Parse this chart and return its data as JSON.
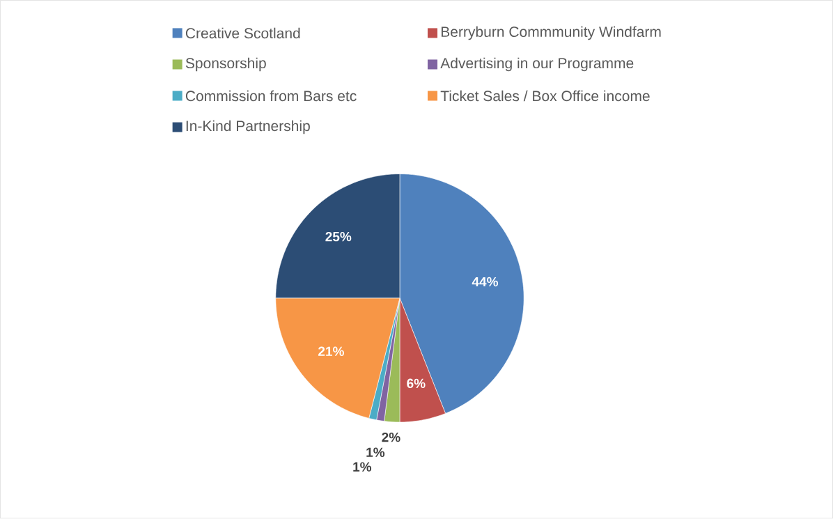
{
  "chart_data": {
    "type": "pie",
    "categories": [
      "Creative Scotland",
      "Berryburn Commmunity Windfarm",
      "Sponsorship",
      "Advertising in our Programme",
      "Commission from Bars etc",
      "Ticket Sales / Box Office income",
      "In-Kind Partnership"
    ],
    "values": [
      44,
      6,
      2,
      1,
      1,
      21,
      25
    ],
    "colors": [
      "#4f81bd",
      "#c0504d",
      "#9bbb59",
      "#8064a2",
      "#4bacc6",
      "#f79646",
      "#2c4d75"
    ],
    "value_labels": [
      "44%",
      "6%",
      "2%",
      "1%",
      "1%",
      "21%",
      "25%"
    ],
    "legend": "top"
  }
}
